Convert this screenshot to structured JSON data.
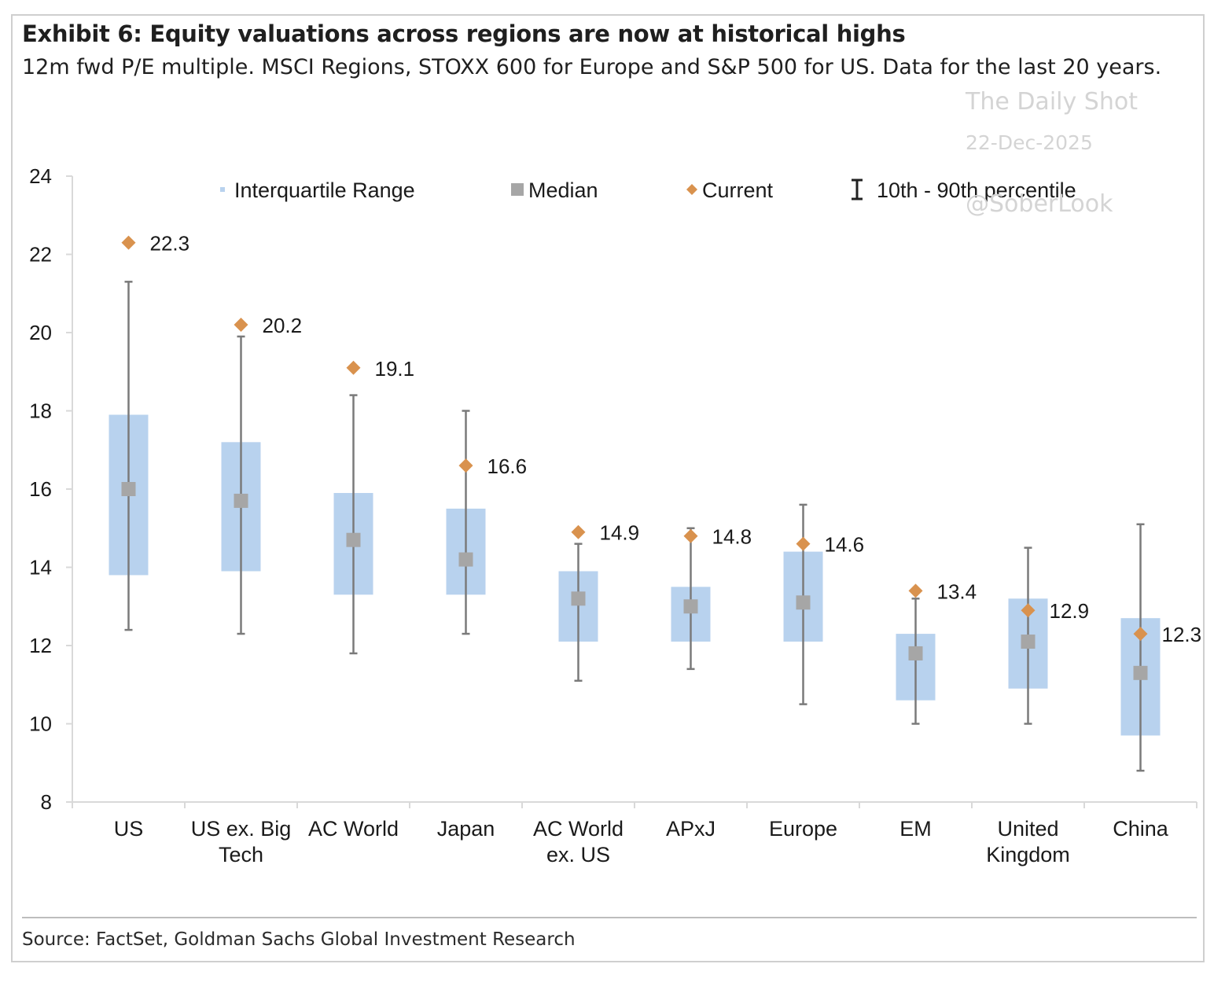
{
  "title": "Exhibit 6: Equity valuations across regions are now at historical highs",
  "subtitle": "12m fwd P/E multiple. MSCI Regions, STOXX 600 for Europe and S&P 500 for US. Data for the last 20 years.",
  "watermark": {
    "line1": "The Daily Shot",
    "line2": "22-Dec-2025",
    "line3": "@SoberLook"
  },
  "source": "Source: FactSet, Goldman Sachs Global Investment Research",
  "colors": {
    "box": "#b8d2ee",
    "median": "#a6a6a6",
    "current": "#d9924e",
    "whisker": "#7a7a7a",
    "axis": "#d9d9d9",
    "text": "#1a1a1a"
  },
  "chart_data": {
    "type": "box",
    "ylim": [
      8,
      24
    ],
    "yticks": [
      8,
      10,
      12,
      14,
      16,
      18,
      20,
      22,
      24
    ],
    "legend": {
      "placement": "top",
      "items": [
        {
          "key": "iqr",
          "label": "Interquartile Range"
        },
        {
          "key": "median",
          "label": "Median"
        },
        {
          "key": "current",
          "label": "Current"
        },
        {
          "key": "range",
          "label": "10th - 90th percentile"
        }
      ]
    },
    "categories": [
      {
        "label": [
          "US"
        ],
        "p10": 12.4,
        "q1": 13.8,
        "median": 16.0,
        "q3": 17.9,
        "p90": 21.3,
        "current": 22.3,
        "current_label": "22.3"
      },
      {
        "label": [
          "US ex. Big",
          "Tech"
        ],
        "p10": 12.3,
        "q1": 13.9,
        "median": 15.7,
        "q3": 17.2,
        "p90": 19.9,
        "current": 20.2,
        "current_label": "20.2"
      },
      {
        "label": [
          "AC World"
        ],
        "p10": 11.8,
        "q1": 13.3,
        "median": 14.7,
        "q3": 15.9,
        "p90": 18.4,
        "current": 19.1,
        "current_label": "19.1"
      },
      {
        "label": [
          "Japan"
        ],
        "p10": 12.3,
        "q1": 13.3,
        "median": 14.2,
        "q3": 15.5,
        "p90": 18.0,
        "current": 16.6,
        "current_label": "16.6"
      },
      {
        "label": [
          "AC World",
          "ex. US"
        ],
        "p10": 11.1,
        "q1": 12.1,
        "median": 13.2,
        "q3": 13.9,
        "p90": 14.6,
        "current": 14.9,
        "current_label": "14.9"
      },
      {
        "label": [
          "APxJ"
        ],
        "p10": 11.4,
        "q1": 12.1,
        "median": 13.0,
        "q3": 13.5,
        "p90": 15.0,
        "current": 14.8,
        "current_label": "14.8"
      },
      {
        "label": [
          "Europe"
        ],
        "p10": 10.5,
        "q1": 12.1,
        "median": 13.1,
        "q3": 14.4,
        "p90": 15.6,
        "current": 14.6,
        "current_label": "14.6"
      },
      {
        "label": [
          "EM"
        ],
        "p10": 10.0,
        "q1": 10.6,
        "median": 11.8,
        "q3": 12.3,
        "p90": 13.2,
        "current": 13.4,
        "current_label": "13.4"
      },
      {
        "label": [
          "United",
          "Kingdom"
        ],
        "p10": 10.0,
        "q1": 10.9,
        "median": 12.1,
        "q3": 13.2,
        "p90": 14.5,
        "current": 12.9,
        "current_label": "12.9"
      },
      {
        "label": [
          "China"
        ],
        "p10": 8.8,
        "q1": 9.7,
        "median": 11.3,
        "q3": 12.7,
        "p90": 15.1,
        "current": 12.3,
        "current_label": "12.3"
      }
    ]
  }
}
